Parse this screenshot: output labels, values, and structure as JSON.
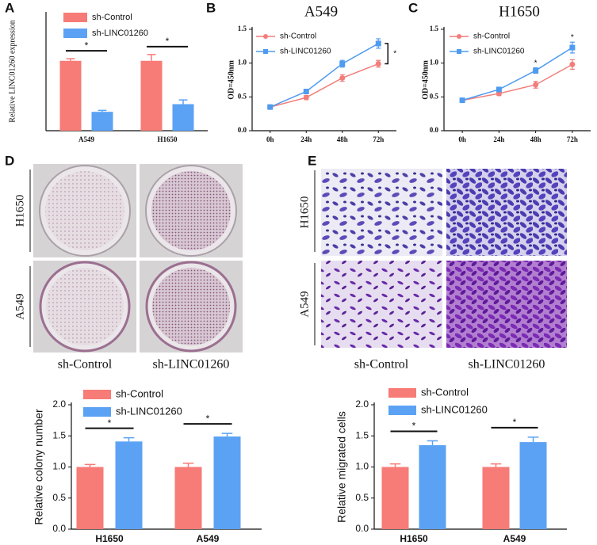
{
  "panel_labels": [
    "A",
    "B",
    "C",
    "D",
    "E"
  ],
  "photo_panels": [
    {
      "rows": [
        "H1650",
        "A549"
      ],
      "columns": [
        "sh-Control",
        "sh-LINC01260"
      ]
    },
    {
      "rows": [
        "H1650",
        "A549"
      ],
      "columns": [
        "sh-Control",
        "sh-LINC01260"
      ]
    }
  ],
  "chart_data": [
    {
      "type": "bar",
      "ylabel": "Relative LINC01260 expression",
      "categories": [
        "A549",
        "H1650"
      ],
      "series": [
        {
          "name": "sh-Control",
          "color": "#f77b76",
          "values": [
            1.0,
            1.0
          ],
          "errors": [
            0.03,
            0.09
          ]
        },
        {
          "name": "sh-LINC01260",
          "color": "#5ba2f4",
          "values": [
            0.27,
            0.38
          ],
          "errors": [
            0.02,
            0.06
          ]
        }
      ],
      "ylim": [
        0,
        1.7
      ],
      "significance": [
        "*",
        "*"
      ]
    },
    {
      "type": "line",
      "title": "A549",
      "ylabel": "OD=450nm",
      "categories": [
        "0h",
        "24h",
        "48h",
        "72h"
      ],
      "series": [
        {
          "name": "sh-Control",
          "color": "#f27d7a",
          "marker": "circle",
          "values": [
            0.35,
            0.49,
            0.78,
            0.99
          ],
          "errors": [
            0.02,
            0.03,
            0.05,
            0.05
          ]
        },
        {
          "name": "sh-LINC01260",
          "color": "#4e9bf0",
          "marker": "square",
          "values": [
            0.35,
            0.58,
            0.99,
            1.29
          ],
          "errors": [
            0.02,
            0.03,
            0.05,
            0.07
          ]
        }
      ],
      "ylim": [
        0,
        1.5
      ],
      "yticks": [
        {
          "value": 0,
          "label": "0.0"
        },
        0.5,
        {
          "value": 1,
          "label": "1.0"
        },
        1.5
      ],
      "significance": [
        null,
        null,
        null,
        "*"
      ],
      "significance_bracket": true
    },
    {
      "type": "line",
      "title": "H1650",
      "ylabel": "OD=450nm",
      "categories": [
        "0h",
        "24h",
        "48h",
        "72h"
      ],
      "series": [
        {
          "name": "sh-Control",
          "color": "#f27d7a",
          "marker": "circle",
          "values": [
            0.45,
            0.55,
            0.68,
            0.98
          ],
          "errors": [
            0.03,
            0.03,
            0.05,
            0.07
          ]
        },
        {
          "name": "sh-LINC01260",
          "color": "#4e9bf0",
          "marker": "square",
          "values": [
            0.45,
            0.61,
            0.89,
            1.23
          ],
          "errors": [
            0.02,
            0.03,
            0.04,
            0.08
          ]
        }
      ],
      "ylim": [
        0,
        1.5
      ],
      "yticks": [
        {
          "value": 0,
          "label": "0.0"
        },
        0.5,
        {
          "value": 1,
          "label": "1.0"
        },
        1.5
      ],
      "significance": [
        null,
        null,
        "*",
        "*"
      ],
      "significance_bracket": false
    },
    {
      "type": "bar",
      "ylabel": "Relative colony number",
      "categories": [
        "H1650",
        "A549"
      ],
      "series": [
        {
          "name": "sh-Control",
          "color": "#f77b76",
          "values": [
            1.0,
            1.0
          ],
          "errors": [
            0.04,
            0.06
          ]
        },
        {
          "name": "sh-LINC01260",
          "color": "#5ba2f4",
          "values": [
            1.41,
            1.49
          ],
          "errors": [
            0.06,
            0.05
          ]
        }
      ],
      "ylim": [
        0,
        2.0
      ],
      "yticks": [
        {
          "value": 0,
          "label": "0.0"
        },
        0.5,
        {
          "value": 1,
          "label": "1.0"
        },
        1.5,
        {
          "value": 2,
          "label": "2.0"
        }
      ],
      "significance": [
        "*",
        "*"
      ]
    },
    {
      "type": "bar",
      "ylabel": "Relative migrated cells",
      "categories": [
        "H1650",
        "A549"
      ],
      "series": [
        {
          "name": "sh-Control",
          "color": "#f77b76",
          "values": [
            1.0,
            1.0
          ],
          "errors": [
            0.05,
            0.05
          ]
        },
        {
          "name": "sh-LINC01260",
          "color": "#5ba2f4",
          "values": [
            1.35,
            1.4
          ],
          "errors": [
            0.07,
            0.08
          ]
        }
      ],
      "ylim": [
        0,
        2.0
      ],
      "yticks": [
        {
          "value": 0,
          "label": "0.0"
        },
        0.5,
        {
          "value": 1,
          "label": "1.0"
        },
        1.5,
        {
          "value": 2,
          "label": "2.0"
        }
      ],
      "significance": [
        "*",
        "*"
      ]
    }
  ]
}
